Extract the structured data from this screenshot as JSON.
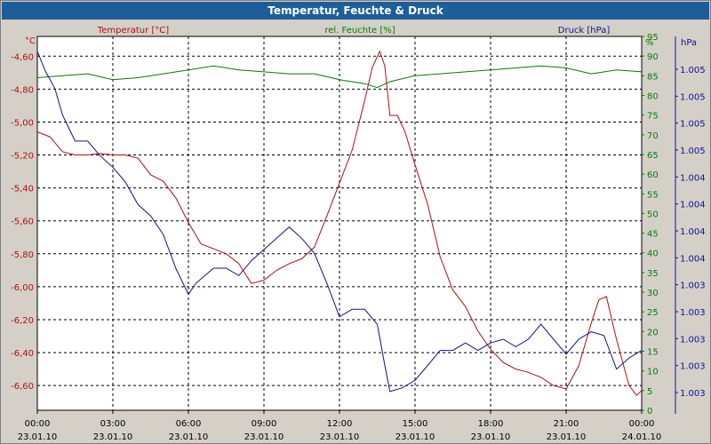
{
  "window": {
    "title": "Temperatur, Feuchte & Druck"
  },
  "chart_data": {
    "type": "line",
    "title": "Temperatur, Feuchte & Druck",
    "legend": [
      "Temperatur [°C]",
      "rel. Feuchte [%]",
      "Druck [hPa]"
    ],
    "grid": true,
    "x_labels": [
      {
        "time": "00:00",
        "date": "23.01.10"
      },
      {
        "time": "03:00",
        "date": "23.01.10"
      },
      {
        "time": "06:00",
        "date": "23.01.10"
      },
      {
        "time": "09:00",
        "date": "23.01.10"
      },
      {
        "time": "12:00",
        "date": "23.01.10"
      },
      {
        "time": "15:00",
        "date": "23.01.10"
      },
      {
        "time": "18:00",
        "date": "23.01.10"
      },
      {
        "time": "21:00",
        "date": "23.01.10"
      },
      {
        "time": "00:00",
        "date": "24.01.10"
      }
    ],
    "xlim_hours": [
      0,
      24
    ],
    "axes": {
      "temperature": {
        "unit": "°C",
        "color": "#b01010",
        "ylim": [
          -6.75,
          -4.48
        ],
        "ticks": [
          "-4,60",
          "-4,80",
          "-5,00",
          "-5,20",
          "-5,40",
          "-5,60",
          "-5,80",
          "-6,00",
          "-6,20",
          "-6,40",
          "-6,60"
        ],
        "tick_values": [
          -4.6,
          -4.8,
          -5.0,
          -5.2,
          -5.4,
          -5.6,
          -5.8,
          -6.0,
          -6.2,
          -6.4,
          -6.6
        ]
      },
      "humidity": {
        "unit": "%",
        "color": "#0a7a0a",
        "ylim": [
          0,
          95
        ],
        "ticks": [
          "95",
          "90",
          "85",
          "80",
          "75",
          "70",
          "65",
          "60",
          "55",
          "50",
          "45",
          "40",
          "35",
          "30",
          "25",
          "20",
          "15",
          "10",
          "5",
          "0"
        ],
        "tick_values": [
          95,
          90,
          85,
          80,
          75,
          70,
          65,
          60,
          55,
          50,
          45,
          40,
          35,
          30,
          25,
          20,
          15,
          10,
          5,
          0
        ]
      },
      "pressure": {
        "unit": "hPa",
        "color": "#10109a",
        "ticks": [
          "1.005",
          "1.005",
          "1.005",
          "1.005",
          "1.004",
          "1.004",
          "1.004",
          "1.004",
          "1.003",
          "1.003",
          "1.003",
          "1.003",
          "1.003"
        ]
      }
    },
    "series": [
      {
        "name": "Temperatur [°C]",
        "axis": "temperature",
        "color": "#b01010",
        "x": [
          0,
          0.5,
          1,
          1.5,
          2,
          2.5,
          3,
          3.5,
          4,
          4.5,
          5,
          5.5,
          6,
          6.5,
          7,
          7.5,
          8,
          8.5,
          9,
          9.5,
          10,
          10.5,
          11,
          11.5,
          12,
          12.5,
          13,
          13.3,
          13.6,
          13.8,
          14,
          14.3,
          14.6,
          15,
          15.5,
          16,
          16.5,
          17,
          17.5,
          18,
          18.5,
          19,
          19.5,
          20,
          20.5,
          21,
          21.5,
          22,
          22.3,
          22.6,
          23,
          23.5,
          23.8,
          24
        ],
        "y": [
          -5.06,
          -5.09,
          -5.18,
          -5.2,
          -5.2,
          -5.19,
          -5.2,
          -5.2,
          -5.22,
          -5.32,
          -5.36,
          -5.46,
          -5.61,
          -5.74,
          -5.77,
          -5.8,
          -5.86,
          -5.98,
          -5.96,
          -5.9,
          -5.86,
          -5.83,
          -5.76,
          -5.57,
          -5.37,
          -5.17,
          -4.87,
          -4.67,
          -4.57,
          -4.66,
          -4.96,
          -4.96,
          -5.06,
          -5.26,
          -5.5,
          -5.82,
          -6.02,
          -6.12,
          -6.27,
          -6.38,
          -6.46,
          -6.5,
          -6.52,
          -6.55,
          -6.6,
          -6.62,
          -6.48,
          -6.22,
          -6.08,
          -6.06,
          -6.32,
          -6.6,
          -6.66,
          -6.63
        ]
      },
      {
        "name": "rel. Feuchte [%]",
        "axis": "humidity",
        "color": "#0a7a0a",
        "x": [
          0,
          1,
          2,
          3,
          4,
          5,
          6,
          7,
          8,
          9,
          10,
          11,
          12,
          13,
          13.5,
          14,
          15,
          16,
          17,
          18,
          19,
          20,
          21,
          22,
          23,
          24
        ],
        "y": [
          84.5,
          85,
          85.5,
          84,
          84.5,
          85.5,
          86.5,
          87.5,
          86.5,
          86,
          85.5,
          85.5,
          84,
          83,
          82,
          83.5,
          85,
          85.5,
          86,
          86.5,
          87,
          87.5,
          87,
          85.5,
          86.5,
          86
        ]
      },
      {
        "name": "Druck [hPa]",
        "axis": "pressure",
        "color": "#10109a",
        "scale_frac_ylim": [
          0,
          1
        ],
        "x": [
          0,
          0.3,
          0.7,
          1,
          1.5,
          2,
          2.5,
          3,
          3.5,
          4,
          4.5,
          5,
          5.5,
          6,
          6.3,
          7,
          7.5,
          8,
          8.5,
          9,
          9.5,
          10,
          10.5,
          11,
          11.5,
          12,
          12.5,
          13,
          13.5,
          13.8,
          14,
          14.5,
          15,
          15.5,
          16,
          16.5,
          17,
          17.5,
          18,
          18.5,
          19,
          19.5,
          20,
          20.5,
          21,
          21.5,
          22,
          22.5,
          23,
          23.5,
          24
        ],
        "y": [
          0.96,
          0.91,
          0.86,
          0.79,
          0.72,
          0.72,
          0.68,
          0.65,
          0.61,
          0.55,
          0.52,
          0.47,
          0.38,
          0.31,
          0.34,
          0.38,
          0.38,
          0.36,
          0.4,
          0.43,
          0.46,
          0.49,
          0.46,
          0.42,
          0.34,
          0.25,
          0.27,
          0.27,
          0.23,
          0.12,
          0.05,
          0.06,
          0.08,
          0.12,
          0.16,
          0.16,
          0.18,
          0.16,
          0.18,
          0.19,
          0.17,
          0.19,
          0.23,
          0.19,
          0.15,
          0.19,
          0.21,
          0.2,
          0.11,
          0.14,
          0.16
        ]
      }
    ]
  }
}
